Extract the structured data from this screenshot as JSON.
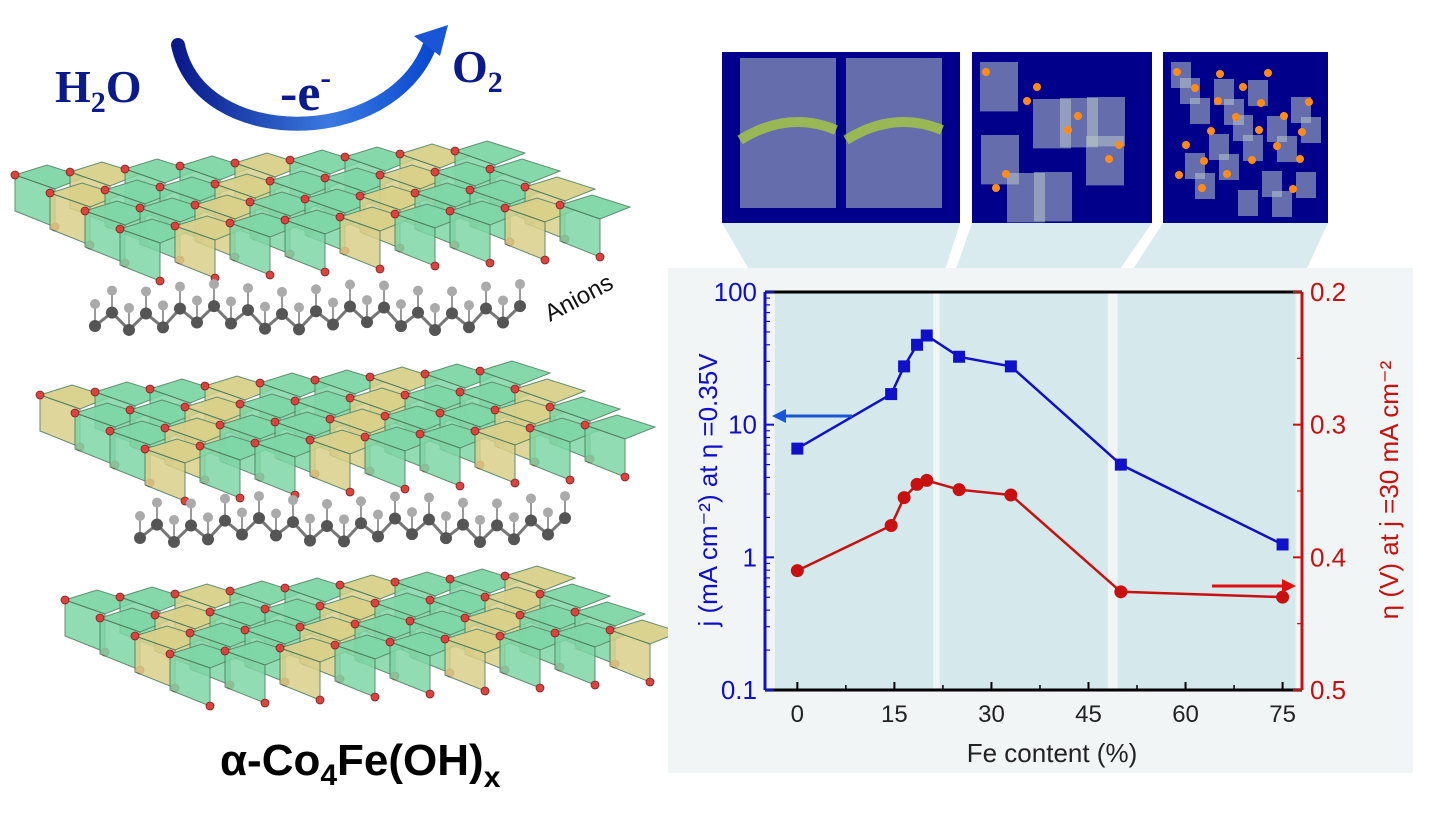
{
  "reaction": {
    "reactant": "H2O",
    "reactant_main": "H",
    "reactant_sub": "2",
    "reactant_tail": "O",
    "product_main": "O",
    "product_sub": "2",
    "electron_main": "-e",
    "electron_sup": "-"
  },
  "structure": {
    "anion_label": "Anions",
    "formula_main": "α-Co",
    "formula_sub1": "4",
    "formula_mid": "Fe(OH)",
    "formula_sub2": "x",
    "layer_color": "#7fd6a6",
    "alt_color": "#d9d08a",
    "node_color": "#d9443f"
  },
  "insets": {
    "background": "#00008a",
    "particle_color": "#ff8c1a",
    "green_color": "#a6c93e"
  },
  "chart_data": {
    "type": "line",
    "xlabel": "Fe content (%)",
    "ylabel_left": "j (mA cm⁻²) at η =0.35V",
    "ylabel_right": "η (V) at j =30 mA cm⁻²",
    "xlim": [
      -5,
      78
    ],
    "x_ticks": [
      0,
      15,
      30,
      45,
      60,
      75
    ],
    "x_tick_labels": [
      "0",
      "15",
      "30",
      "45",
      "60",
      "75"
    ],
    "y_left": {
      "scale": "log",
      "lim": [
        0.1,
        100
      ],
      "ticks": [
        0.1,
        1,
        10,
        100
      ],
      "tick_labels": [
        "0.1",
        "1",
        "10",
        "100"
      ],
      "color": "#1010c8"
    },
    "y_right": {
      "scale": "linear",
      "lim": [
        0.5,
        0.2
      ],
      "ticks": [
        0.2,
        0.3,
        0.4,
        0.5
      ],
      "tick_labels": [
        "0.2",
        "0.3",
        "0.4",
        "0.5"
      ],
      "color": "#c81010"
    },
    "regions": [
      [
        -3.5,
        21
      ],
      [
        22,
        48
      ],
      [
        49.5,
        77
      ]
    ],
    "region_color": "#d5e9ec",
    "series": [
      {
        "axis": "left",
        "marker": "square",
        "color": "#1010c8",
        "x": [
          0,
          14.5,
          16.5,
          18.5,
          20,
          25,
          33,
          50,
          75
        ],
        "y": [
          6.6,
          17,
          27.5,
          40,
          47,
          32.5,
          27.5,
          5,
          1.25
        ]
      },
      {
        "axis": "right",
        "marker": "circle",
        "color": "#c81010",
        "x": [
          0,
          14.5,
          16.5,
          18.5,
          20,
          25,
          33,
          50,
          75
        ],
        "y": [
          0.41,
          0.376,
          0.355,
          0.345,
          0.342,
          0.349,
          0.353,
          0.426,
          0.43
        ]
      }
    ]
  }
}
